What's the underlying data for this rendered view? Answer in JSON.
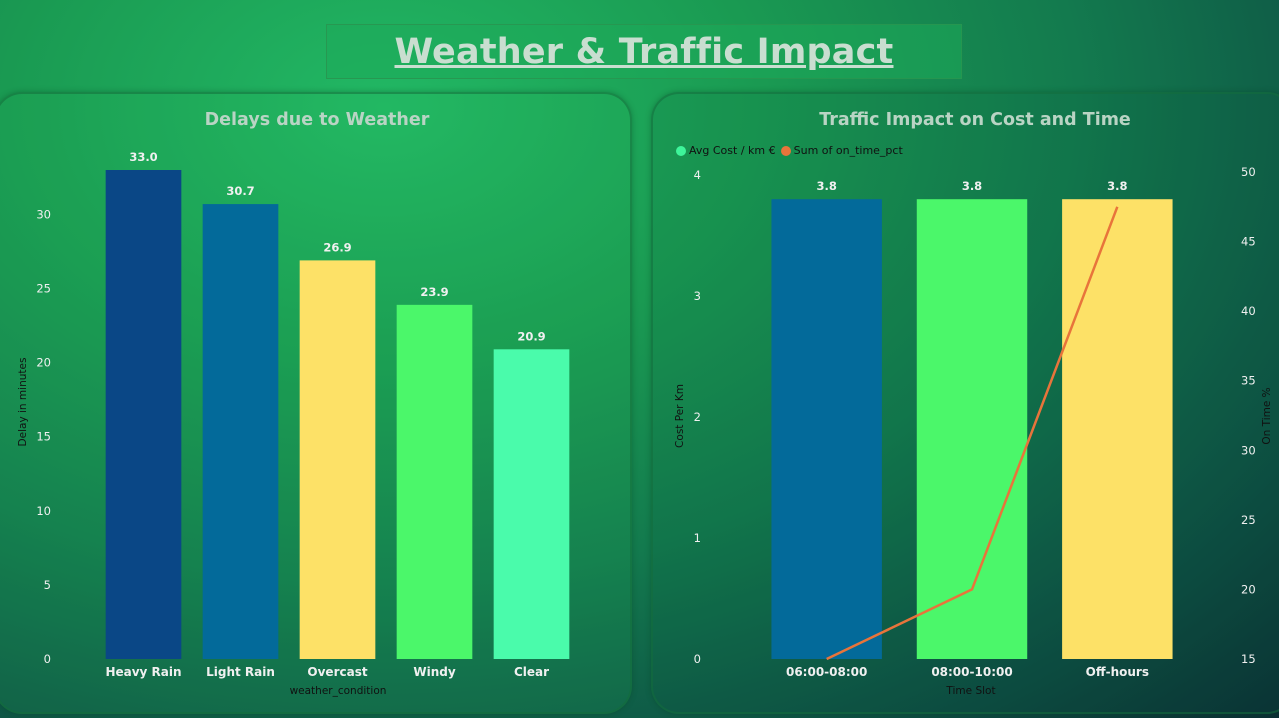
{
  "page_title": "Weather & Traffic Impact",
  "chart_data": [
    {
      "type": "bar",
      "title": "Delays due to Weather",
      "xlabel": "weather_condition",
      "ylabel": "Delay in minutes",
      "categories": [
        "Heavy Rain",
        "Light Rain",
        "Overcast",
        "Windy",
        "Clear"
      ],
      "values": [
        33.0,
        30.7,
        26.9,
        23.9,
        20.9
      ],
      "data_labels": [
        "33.0",
        "30.7",
        "26.9",
        "23.9",
        "20.9"
      ],
      "bar_colors": [
        "#0a4786",
        "#036a9a",
        "#fde167",
        "#4bf76a",
        "#4afbab"
      ],
      "ylim": [
        0,
        33
      ],
      "yticks": [
        0,
        5,
        10,
        15,
        20,
        25,
        30
      ],
      "grid": false
    },
    {
      "type": "bar",
      "title": "Traffic Impact on Cost and Time",
      "xlabel": "Time Slot",
      "ylabel": "Cost Per Km",
      "y2label": "On Time %",
      "categories": [
        "06:00-08:00",
        "08:00-10:00",
        "Off-hours"
      ],
      "series": [
        {
          "name": "Avg Cost / km €",
          "kind": "bar",
          "values": [
            3.8,
            3.8,
            3.8
          ],
          "data_labels": [
            "3.8",
            "3.8",
            "3.8"
          ],
          "color": "#3ef59a"
        },
        {
          "name": "Sum of on_time_pct",
          "kind": "line",
          "axis": "right",
          "values": [
            15,
            20,
            47.5
          ],
          "color": "#e8743b"
        }
      ],
      "bar_colors": [
        "#036a9a",
        "#4bf76a",
        "#fde167"
      ],
      "ylim": [
        0,
        4
      ],
      "yticks": [
        0,
        1,
        2,
        3,
        4
      ],
      "y2lim": [
        15,
        50
      ],
      "y2ticks": [
        15,
        20,
        25,
        30,
        35,
        40,
        45,
        50
      ],
      "legend_position": "top-left",
      "grid": false
    }
  ]
}
